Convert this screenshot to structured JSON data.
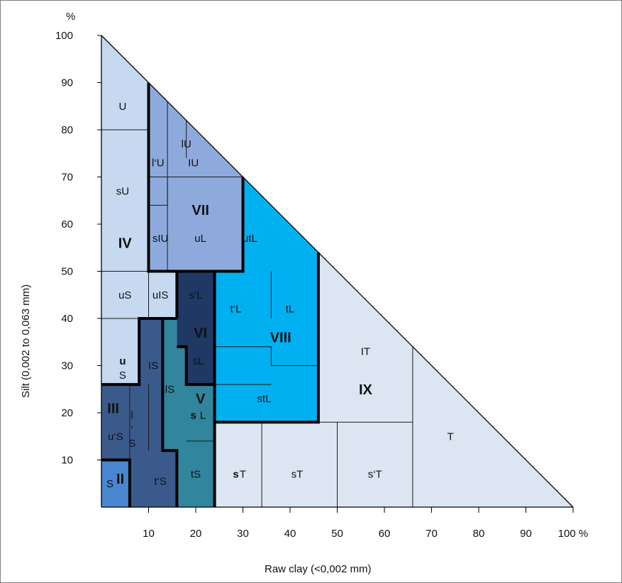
{
  "chart_data": {
    "type": "ternary-texture-diagram",
    "xlabel": "Raw clay (<0,002 mm)",
    "ylabel": "Silt (0,002 to 0,063 mm)",
    "y_unit": "%",
    "x_ticks": [
      "10",
      "20",
      "30",
      "40",
      "50",
      "60",
      "70",
      "80",
      "90",
      "100 %"
    ],
    "y_ticks": [
      "10",
      "20",
      "30",
      "40",
      "50",
      "60",
      "70",
      "80",
      "90",
      "100"
    ],
    "x_range": [
      0,
      100
    ],
    "y_range": [
      0,
      100
    ],
    "colors": {
      "light": "#c6d9f0",
      "light_grey": "#dce6f2",
      "mid_blue": "#8eaadc",
      "cyan": "#00b0f0",
      "dark_navy": "#1f3864",
      "dark_blue": "#3b5a8c",
      "teal": "#31859c",
      "bright_blue": "#4a86d0"
    },
    "classes": [
      {
        "label": "U",
        "group": "IV"
      },
      {
        "label": "sU",
        "group": "IV"
      },
      {
        "label": "IV",
        "group": "IV",
        "roman": true
      },
      {
        "label": "uS",
        "group": "IV"
      },
      {
        "label": "uIS",
        "group": "IV"
      },
      {
        "label": "u",
        "group": "IV",
        "bold": true
      },
      {
        "label": "S",
        "group": "IV"
      },
      {
        "label": "l‘U",
        "group": "VII"
      },
      {
        "label": "lU",
        "group": "VII"
      },
      {
        "label": "IU",
        "group": "VII"
      },
      {
        "label": "sIU",
        "group": "VII"
      },
      {
        "label": "VII",
        "group": "VII",
        "roman": true
      },
      {
        "label": "uL",
        "group": "VII"
      },
      {
        "label": "utL",
        "group": "VIII"
      },
      {
        "label": "t‘L",
        "group": "VIII"
      },
      {
        "label": "tL",
        "group": "VIII"
      },
      {
        "label": "VIII",
        "group": "VIII",
        "roman": true
      },
      {
        "label": "stL",
        "group": "VIII"
      },
      {
        "label": "s‘L",
        "group": "VI"
      },
      {
        "label": "VI",
        "group": "VI",
        "roman": true
      },
      {
        "label": "sL",
        "group": "VI"
      },
      {
        "label": "V",
        "group": "V",
        "roman": true
      },
      {
        "label": "s",
        "group": "V",
        "bold": true
      },
      {
        "label": "L",
        "group": "V"
      },
      {
        "label": "lS",
        "group": "V"
      },
      {
        "label": "tS",
        "group": "V"
      },
      {
        "label": "IS",
        "group": "III"
      },
      {
        "label": "l",
        "group": "III"
      },
      {
        "label": "‘",
        "group": "III"
      },
      {
        "label": "S",
        "group": "III"
      },
      {
        "label": "III",
        "group": "III",
        "roman": true
      },
      {
        "label": "u‘S",
        "group": "III"
      },
      {
        "label": "t‘S",
        "group": "III"
      },
      {
        "label": "S",
        "group": "II"
      },
      {
        "label": "II",
        "group": "II",
        "roman": true
      },
      {
        "label": "IT",
        "group": "IX"
      },
      {
        "label": "IX",
        "group": "IX",
        "roman": true
      },
      {
        "label": "T",
        "group": "IX"
      },
      {
        "label": "s",
        "group": "IX",
        "bold": true
      },
      {
        "label": "T",
        "group": "IX"
      },
      {
        "label": "sT",
        "group": "IX"
      },
      {
        "label": "s‘T",
        "group": "IX"
      }
    ]
  }
}
